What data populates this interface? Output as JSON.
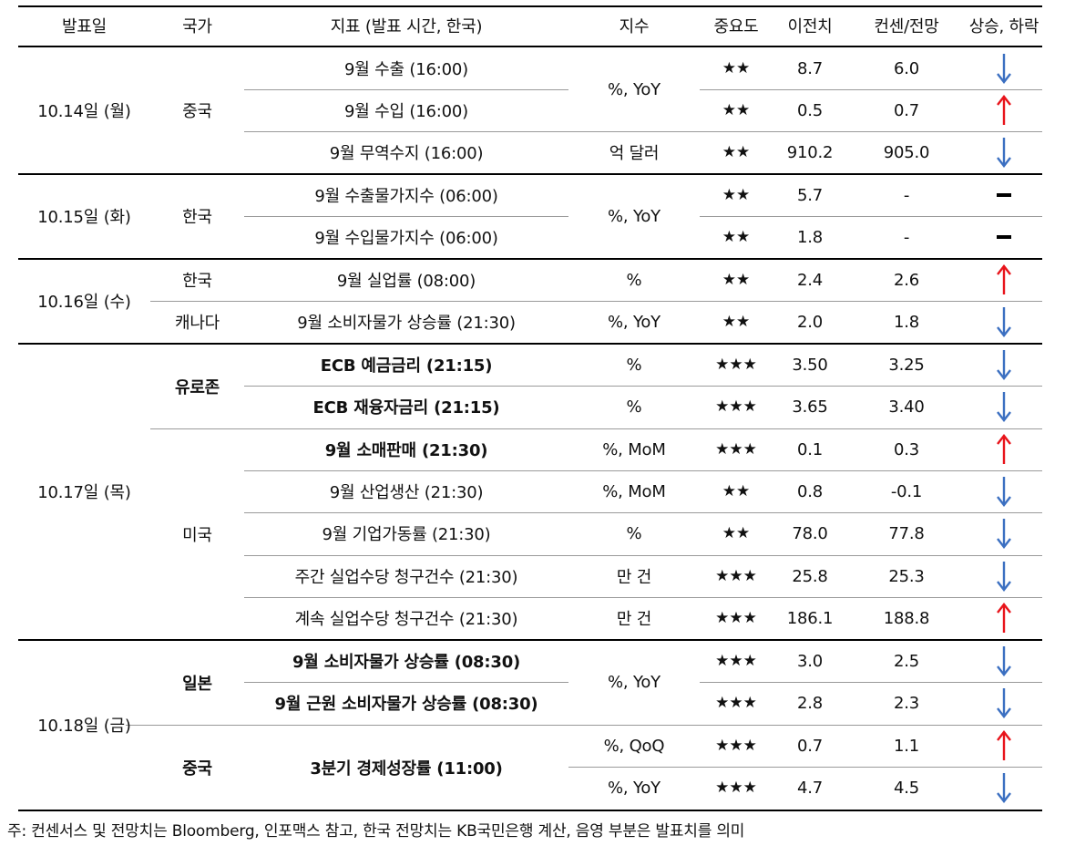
{
  "table": {
    "headers": [
      "발표일",
      "국가",
      "지표 (발표 시간, 한국)",
      "지수",
      "중요도",
      "이전치",
      "컨센/전망",
      "상승, 하락"
    ],
    "dates": [
      {
        "label": "10.14일 (월)"
      },
      {
        "label": "10.15일 (화)"
      },
      {
        "label": "10.16일 (수)"
      },
      {
        "label": "10.17일 (목)"
      },
      {
        "label": "10.18일 (금)"
      }
    ],
    "countries": [
      {
        "label": "중국"
      },
      {
        "label": "한국"
      },
      {
        "label": "한국"
      },
      {
        "label": "캐나다"
      },
      {
        "label": "유로존"
      },
      {
        "label": "미국"
      },
      {
        "label": "일본"
      },
      {
        "label": "중국"
      }
    ],
    "units": [
      {
        "label": "%, YoY"
      },
      {
        "label": "억 달러"
      },
      {
        "label": "%, YoY"
      },
      {
        "label": "%"
      },
      {
        "label": "%, YoY"
      },
      {
        "label": "%"
      },
      {
        "label": "%"
      },
      {
        "label": "%, MoM"
      },
      {
        "label": "%, MoM"
      },
      {
        "label": "%"
      },
      {
        "label": "만 건"
      },
      {
        "label": "만 건"
      },
      {
        "label": "%, YoY"
      },
      {
        "label": "%, QoQ"
      },
      {
        "label": "%, YoY"
      }
    ],
    "rows": [
      {
        "indicator": "9월 수출 (16:00)",
        "bold": false,
        "importance": "★★",
        "prev": "8.7",
        "consensus": "6.0",
        "direction": "down"
      },
      {
        "indicator": "9월 수입 (16:00)",
        "bold": false,
        "importance": "★★",
        "prev": "0.5",
        "consensus": "0.7",
        "direction": "up"
      },
      {
        "indicator": "9월 무역수지 (16:00)",
        "bold": false,
        "importance": "★★",
        "prev": "910.2",
        "consensus": "905.0",
        "direction": "down"
      },
      {
        "indicator": "9월 수출물가지수 (06:00)",
        "bold": false,
        "importance": "★★",
        "prev": "5.7",
        "consensus": "-",
        "direction": "flat"
      },
      {
        "indicator": "9월 수입물가지수 (06:00)",
        "bold": false,
        "importance": "★★",
        "prev": "1.8",
        "consensus": "-",
        "direction": "flat"
      },
      {
        "indicator": "9월 실업률 (08:00)",
        "bold": false,
        "importance": "★★",
        "prev": "2.4",
        "consensus": "2.6",
        "direction": "up"
      },
      {
        "indicator": "9월 소비자물가 상승률 (21:30)",
        "bold": false,
        "importance": "★★",
        "prev": "2.0",
        "consensus": "1.8",
        "direction": "down"
      },
      {
        "indicator": "ECB 예금금리 (21:15)",
        "bold": true,
        "importance": "★★★",
        "prev": "3.50",
        "consensus": "3.25",
        "direction": "down"
      },
      {
        "indicator": "ECB 재융자금리 (21:15)",
        "bold": true,
        "importance": "★★★",
        "prev": "3.65",
        "consensus": "3.40",
        "direction": "down"
      },
      {
        "indicator": "9월 소매판매 (21:30)",
        "bold": true,
        "importance": "★★★",
        "prev": "0.1",
        "consensus": "0.3",
        "direction": "up"
      },
      {
        "indicator": "9월 산업생산 (21:30)",
        "bold": false,
        "importance": "★★",
        "prev": "0.8",
        "consensus": "-0.1",
        "direction": "down"
      },
      {
        "indicator": "9월 기업가동률 (21:30)",
        "bold": false,
        "importance": "★★",
        "prev": "78.0",
        "consensus": "77.8",
        "direction": "down"
      },
      {
        "indicator": "주간 실업수당 청구건수 (21:30)",
        "bold": false,
        "importance": "★★★",
        "prev": "25.8",
        "consensus": "25.3",
        "direction": "down"
      },
      {
        "indicator": "계속 실업수당 청구건수 (21:30)",
        "bold": false,
        "importance": "★★★",
        "prev": "186.1",
        "consensus": "188.8",
        "direction": "up"
      },
      {
        "indicator": "9월 소비자물가 상승률 (08:30)",
        "bold": true,
        "importance": "★★★",
        "prev": "3.0",
        "consensus": "2.5",
        "direction": "down"
      },
      {
        "indicator": "9월 근원 소비자물가 상승률 (08:30)",
        "bold": true,
        "importance": "★★★",
        "prev": "2.8",
        "consensus": "2.3",
        "direction": "down"
      },
      {
        "indicator": "3분기 경제성장률 (11:00)",
        "bold": true,
        "importance": "★★★",
        "prev": "0.7",
        "consensus": "1.1",
        "direction": "up"
      },
      {
        "indicator": "",
        "bold": true,
        "importance": "★★★",
        "prev": "4.7",
        "consensus": "4.5",
        "direction": "down"
      }
    ]
  },
  "colors": {
    "up": "#e8141b",
    "down": "#3b6fc1",
    "flat": "#000000"
  },
  "footnote": "주: 컨센서스 및 전망치는 Bloomberg, 인포맥스 참고, 한국 전망치는 KB국민은행 계산, 음영 부분은 발표치를 의미"
}
